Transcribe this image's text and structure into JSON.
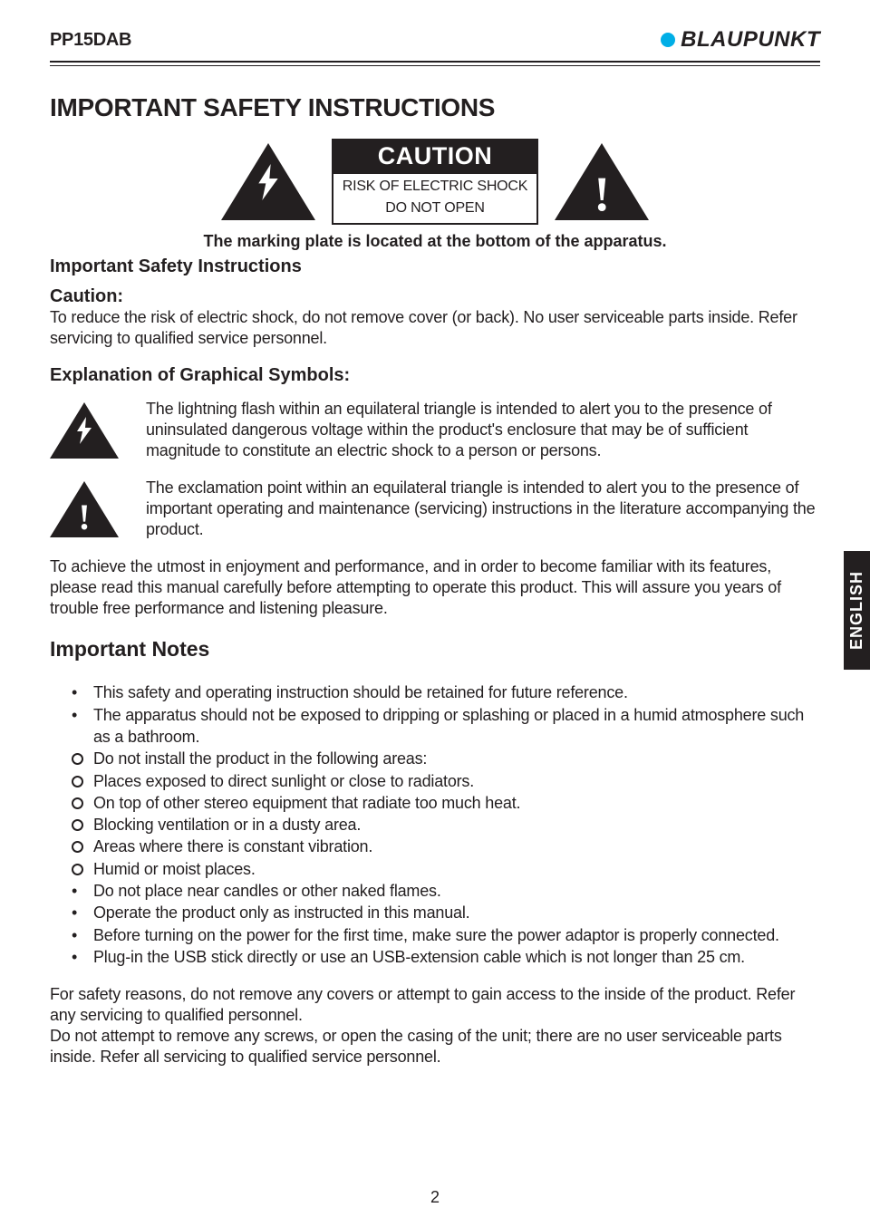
{
  "header": {
    "model": "PP15DAB",
    "brand": "BLAUPUNKT",
    "brand_dot_color": "#00aee6"
  },
  "title": "IMPORTANT SAFETY INSTRUCTIONS",
  "caution": {
    "label": "CAUTION",
    "line1": "RISK OF ELECTRIC SHOCK",
    "line2": "DO NOT OPEN"
  },
  "marking_note": "The marking plate is located at the bottom of the apparatus.",
  "sections": {
    "isi_title": "Important Safety Instructions",
    "caution_title": "Caution:",
    "caution_body": "To reduce the risk of electric shock, do not remove cover (or back). No user serviceable parts inside. Refer servicing to qualified service personnel.",
    "symbols_title": "Explanation of Graphical Symbols:",
    "lightning_text": "The lightning flash within an equilateral triangle is intended to alert you to the presence of uninsulated dangerous voltage within the product's enclosure that may be of sufficient magnitude to constitute an electric shock to a person or persons.",
    "exclam_text": "The exclamation point within an equilateral triangle is intended to alert you to the presence of important operating and maintenance (servicing) instructions in the literature accompanying the product.",
    "intro_para": "To achieve the utmost in enjoyment and performance, and in order to become familiar with its features, please read this manual carefully before attempting to operate this product. This will assure you years of trouble free performance and listening pleasure."
  },
  "lang_tab": "ENGLISH",
  "notes": {
    "title": "Important Notes",
    "items": [
      {
        "style": "dot",
        "text": "This safety and operating instruction should be retained for future reference."
      },
      {
        "style": "dot",
        "text": "The apparatus should not be exposed to dripping or splashing or placed in a humid atmosphere such as a bathroom."
      },
      {
        "style": "circ",
        "text": "Do not install the product in the following areas:"
      },
      {
        "style": "circ",
        "text": "Places exposed to direct sunlight or close to radiators."
      },
      {
        "style": "circ",
        "text": "On top of other stereo equipment that radiate too much heat."
      },
      {
        "style": "circ",
        "text": "Blocking ventilation or in a dusty area."
      },
      {
        "style": "circ",
        "text": "Areas where there is constant vibration."
      },
      {
        "style": "circ",
        "text": "Humid or moist places."
      },
      {
        "style": "dot",
        "text": "Do not place near candles or other naked flames."
      },
      {
        "style": "dot",
        "text": "Operate the product only as instructed in this manual."
      },
      {
        "style": "dot",
        "text": "Before turning on the power for the first time, make sure the power adaptor is properly connected."
      },
      {
        "style": "dot",
        "text": "Plug-in the USB stick directly or use an USB-extension cable which is not longer than 25 cm."
      }
    ],
    "closing1": "For safety reasons, do not remove any covers or attempt to gain access to the inside of the product. Refer any servicing to qualified personnel.",
    "closing2": "Do not attempt to remove any screws, or open the casing of the unit; there are no user serviceable parts inside. Refer all servicing to qualified service personnel."
  },
  "page_number": "2"
}
